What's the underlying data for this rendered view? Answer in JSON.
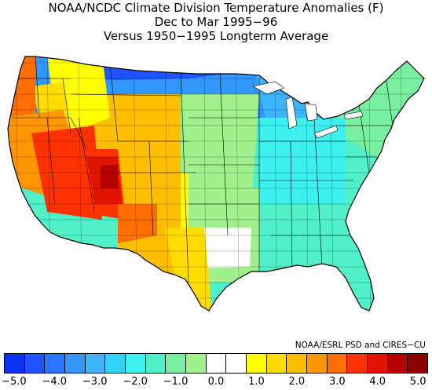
{
  "title": {
    "line1": "NOAA/NCDC Climate Division Temperature Anomalies (F)",
    "line2": "Dec to Mar 1995−96",
    "line3": "Versus 1950−1995 Longterm Average"
  },
  "credit": "NOAA/ESRL PSD and CIRES−CU",
  "legend": {
    "colors": [
      "#0a32f0",
      "#1e55ff",
      "#2878ff",
      "#3296ff",
      "#3cb4ff",
      "#32d2ff",
      "#3cf0f0",
      "#50f0c8",
      "#78f0a0",
      "#a0f08c",
      "#ffffff",
      "#ffffff",
      "#ffff00",
      "#ffdc00",
      "#ffbe00",
      "#ff9600",
      "#ff6e00",
      "#ff3200",
      "#e11400",
      "#b40000",
      "#8c0000"
    ],
    "tick_labels": [
      "−5.0",
      "−4.0",
      "−3.0",
      "−2.0",
      "−1.0",
      "0.0",
      "1.0",
      "2.0",
      "3.0",
      "4.0",
      "5.0"
    ]
  },
  "map": {
    "variable": "Temperature anomaly (F)",
    "regions": [
      {
        "name": "Pacific Northwest coast",
        "anomaly": 3.0,
        "color": "#ff6e00"
      },
      {
        "name": "Northern California / Oregon interior",
        "anomaly": 2.5,
        "color": "#ff9600"
      },
      {
        "name": "Great Basin (Nevada)",
        "anomaly": 3.5,
        "color": "#ff3200"
      },
      {
        "name": "Utah",
        "anomaly": 4.5,
        "color": "#b40000"
      },
      {
        "name": "Southwest (Arizona, SE California)",
        "anomaly": 3.5,
        "color": "#ff3200"
      },
      {
        "name": "Idaho / W Montana",
        "anomaly": 1.0,
        "color": "#ffff00"
      },
      {
        "name": "Eastern Washington",
        "anomaly": 1.5,
        "color": "#ffdc00"
      },
      {
        "name": "Wyoming / Colorado",
        "anomaly": 2.0,
        "color": "#ffbe00"
      },
      {
        "name": "New Mexico / W Texas",
        "anomaly": 2.0,
        "color": "#ffbe00"
      },
      {
        "name": "Texas Panhandle / W Oklahoma",
        "anomaly": 1.0,
        "color": "#ffff00"
      },
      {
        "name": "Northern Plains / Upper Midwest",
        "anomaly": -4.0,
        "color": "#1e55ff"
      },
      {
        "name": "Central Plains",
        "anomaly": -1.5,
        "color": "#a0f08c"
      },
      {
        "name": "Great Lakes",
        "anomaly": -3.0,
        "color": "#3296ff"
      },
      {
        "name": "Ohio Valley / Mid-South",
        "anomaly": -2.0,
        "color": "#32d2ff"
      },
      {
        "name": "Southeast",
        "anomaly": -1.5,
        "color": "#50f0c8"
      },
      {
        "name": "Northeast",
        "anomaly": -1.0,
        "color": "#78f0a0"
      },
      {
        "name": "South Central Texas",
        "anomaly": 0.0,
        "color": "#ffffff"
      }
    ]
  }
}
